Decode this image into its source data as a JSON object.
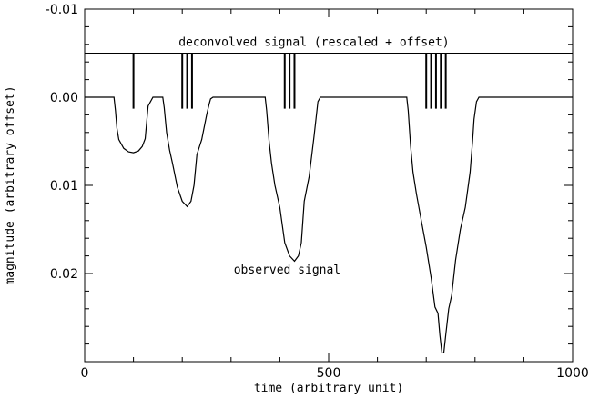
{
  "chart_data": {
    "type": "line",
    "xlabel": "time (arbitrary unit)",
    "ylabel": "magnitude (arbitrary offset)",
    "xlim": [
      0,
      1000
    ],
    "ylim": [
      -0.01,
      0.03
    ],
    "y_inverted": true,
    "grid": false,
    "x_ticks": [
      0,
      500,
      1000
    ],
    "x_tick_labels": [
      "0",
      "500",
      "1000"
    ],
    "y_ticks": [
      -0.01,
      0.0,
      0.01,
      0.02
    ],
    "y_tick_labels": [
      "-0.01",
      "0.00",
      "0.01",
      "0.02"
    ],
    "annotations": [
      {
        "name": "deconvolved-label",
        "text": "deconvolved signal (rescaled + offset)",
        "x": 470,
        "y": -0.0058
      },
      {
        "name": "observed-label",
        "text": "observed signal",
        "x": 415,
        "y": 0.02
      }
    ],
    "series": [
      {
        "role": "observed",
        "x": [
          0,
          60,
          63,
          66,
          70,
          80,
          90,
          100,
          110,
          118,
          124,
          130,
          140,
          150,
          160,
          163,
          168,
          174,
          180,
          190,
          200,
          210,
          218,
          224,
          230,
          240,
          250,
          255,
          258,
          263,
          268,
          280,
          300,
          330,
          360,
          370,
          373,
          378,
          383,
          390,
          400,
          410,
          420,
          430,
          438,
          444,
          450,
          460,
          470,
          475,
          478,
          483,
          488,
          500,
          550,
          600,
          650,
          660,
          663,
          668,
          673,
          680,
          690,
          700,
          710,
          718,
          724,
          728,
          732,
          736,
          740,
          746,
          752,
          760,
          770,
          780,
          790,
          795,
          798,
          803,
          808,
          820,
          850,
          900,
          950,
          1000
        ],
        "y": [
          0,
          0,
          0.0015,
          0.0035,
          0.0048,
          0.0058,
          0.0062,
          0.0063,
          0.0061,
          0.0056,
          0.0047,
          0.001,
          0.0,
          0.0,
          0.0,
          0.0012,
          0.004,
          0.006,
          0.0075,
          0.0102,
          0.0118,
          0.0124,
          0.0118,
          0.01,
          0.0065,
          0.0048,
          0.002,
          0.0008,
          0.0002,
          0.0,
          0.0,
          0.0,
          0.0,
          0.0,
          0.0,
          0.0,
          0.0015,
          0.005,
          0.0075,
          0.01,
          0.0125,
          0.0165,
          0.018,
          0.0186,
          0.018,
          0.0165,
          0.0118,
          0.009,
          0.0045,
          0.002,
          0.0005,
          0.0,
          0.0,
          0.0,
          0.0,
          0.0,
          0.0,
          0.0,
          0.0015,
          0.0055,
          0.0085,
          0.011,
          0.014,
          0.017,
          0.0205,
          0.0238,
          0.0245,
          0.027,
          0.029,
          0.029,
          0.027,
          0.024,
          0.0225,
          0.0185,
          0.015,
          0.0125,
          0.0085,
          0.005,
          0.0025,
          0.0005,
          0.0,
          0.0,
          0.0,
          0.0,
          0.0,
          0.0
        ]
      },
      {
        "role": "deconvolved",
        "type": "spikes",
        "baseline": -0.005,
        "spike_end": 0.0013,
        "x": [
          100,
          200,
          210,
          220,
          410,
          420,
          430,
          700,
          710,
          720,
          730,
          740
        ]
      }
    ]
  }
}
